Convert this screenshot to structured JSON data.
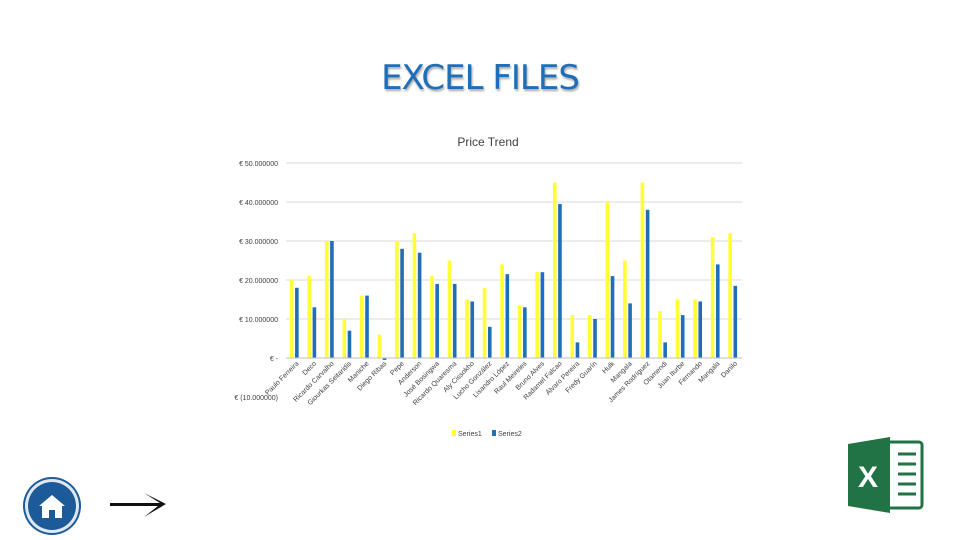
{
  "page": {
    "title": "EXCEL FILES"
  },
  "nav": {
    "home_icon": "home-icon",
    "next_icon": "arrow-right-icon"
  },
  "brand": {
    "icon": "excel-icon",
    "letter": "X",
    "color": "#217346"
  },
  "colors": {
    "series1": "#ffff33",
    "series2": "#1f6fb8",
    "grid": "#d9d9d9",
    "text": "#404040"
  },
  "chart_data": {
    "type": "bar",
    "title": "Price Trend",
    "xlabel": "",
    "ylabel": "",
    "ylim": [
      -10,
      50
    ],
    "grid": true,
    "legend": "bottom",
    "y_ticks": [
      {
        "v": 50,
        "label": "€ 50.000000"
      },
      {
        "v": 40,
        "label": "€ 40.000000"
      },
      {
        "v": 30,
        "label": "€ 30.000000"
      },
      {
        "v": 20,
        "label": "€ 20.000000"
      },
      {
        "v": 10,
        "label": "€ 10.000000"
      },
      {
        "v": 0,
        "label": "€ -"
      },
      {
        "v": -10,
        "label": "€ (10.000000)"
      }
    ],
    "categories": [
      "Paulo Ferreira",
      "Deco",
      "Ricardo Carvalho",
      "Giourkas Seitaridis",
      "Maniche",
      "Diego Ribas",
      "Pepe",
      "Anderson",
      "José Bosingwa",
      "Ricardo Quaresma",
      "Aly Cissokho",
      "Lucho González",
      "Lisandro López",
      "Raul Meireles",
      "Bruno Alves",
      "Radamel Falcao",
      "Álvaro Pereira",
      "Fredy Guarín",
      "Hulk",
      "Mangala",
      "James Rodríguez",
      "Otamendi",
      "Juan Iturbe",
      "Fernando",
      "Mangala",
      "Danilo"
    ],
    "series": [
      {
        "name": "Series1",
        "values": [
          20,
          21,
          30,
          10,
          16,
          6,
          30,
          32,
          21,
          25,
          15,
          18,
          24,
          13.5,
          22,
          45,
          11,
          11,
          40,
          25,
          45,
          12,
          15,
          15,
          31,
          32
        ]
      },
      {
        "name": "Series2",
        "values": [
          18,
          13,
          30,
          7,
          16,
          -0.5,
          28,
          27,
          19,
          19,
          14.5,
          8,
          21.5,
          13,
          22,
          39.5,
          4,
          10,
          21,
          14,
          38,
          4,
          11,
          14.5,
          24,
          18.5
        ]
      }
    ]
  }
}
